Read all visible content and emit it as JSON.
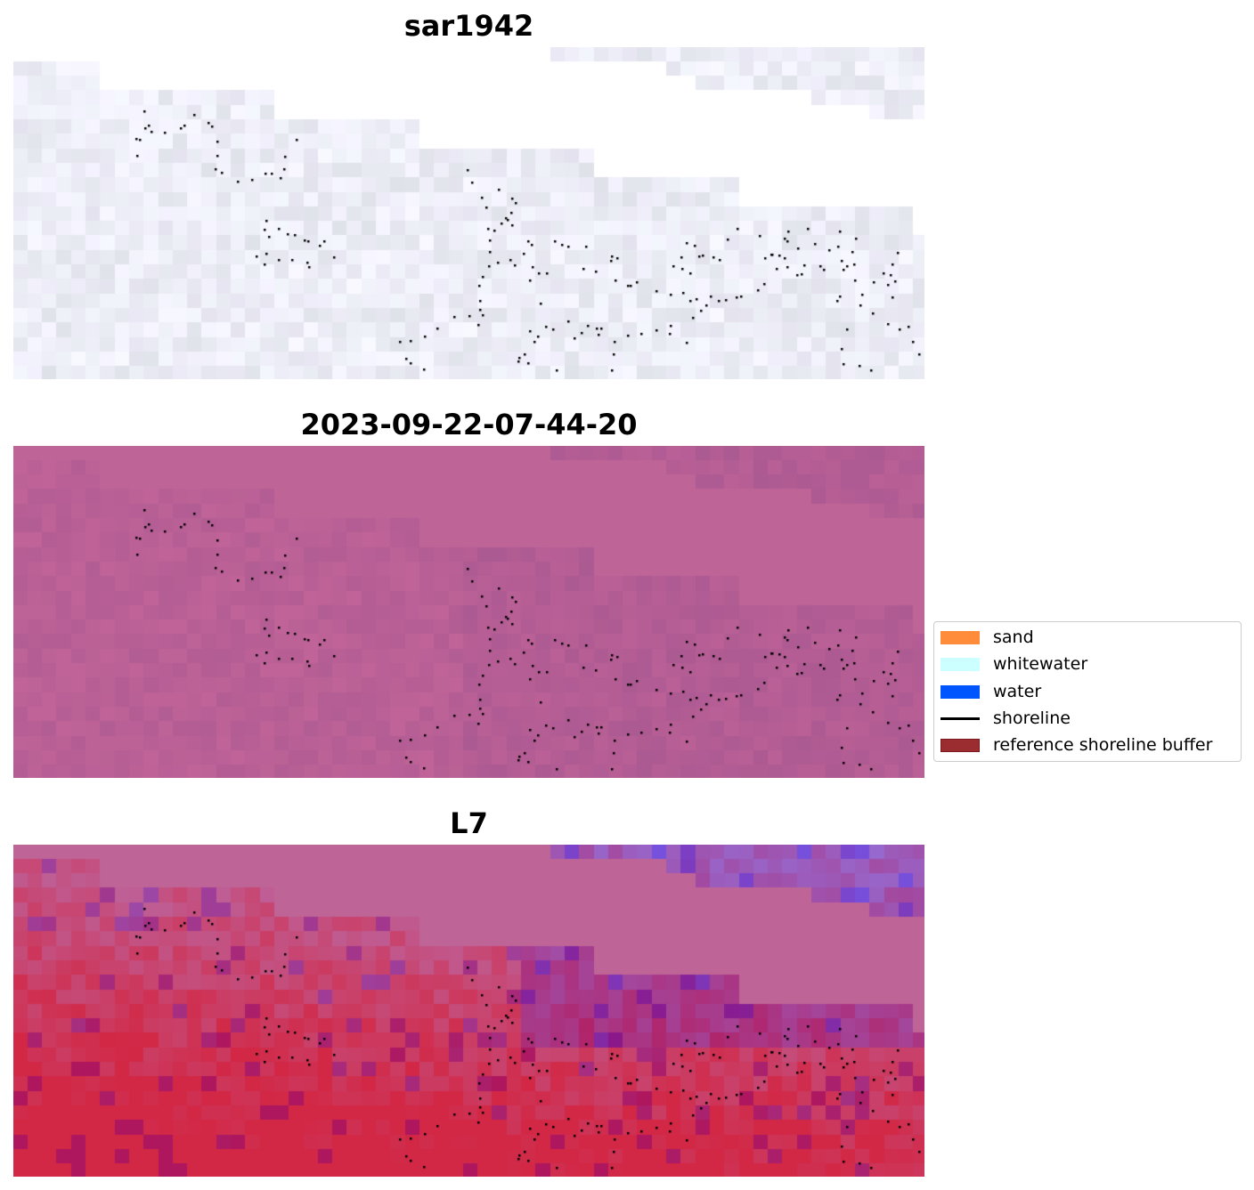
{
  "panels": [
    {
      "title": "sar1942",
      "scheme": "sar"
    },
    {
      "title": "2023-09-22-07-44-20",
      "scheme": "pink"
    },
    {
      "title": "L7",
      "scheme": "l7"
    }
  ],
  "legend": {
    "items": [
      {
        "label": "sand",
        "color": "#ff8c3a",
        "kind": "patch"
      },
      {
        "label": "whitewater",
        "color": "#ccffff",
        "kind": "patch"
      },
      {
        "label": "water",
        "color": "#0055ff",
        "kind": "patch"
      },
      {
        "label": "shoreline",
        "color": "#000000",
        "kind": "line"
      },
      {
        "label": "reference shoreline buffer",
        "color": "#9b2d30",
        "kind": "patch"
      }
    ]
  }
}
